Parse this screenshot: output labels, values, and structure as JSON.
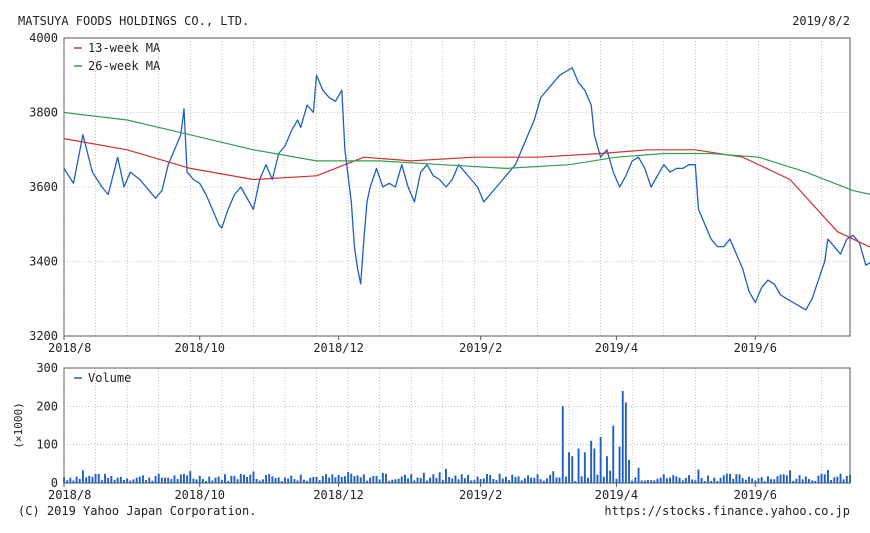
{
  "header": {
    "company": "MATSUYA FOODS HOLDINGS CO., LTD.",
    "date": "2019/8/2"
  },
  "footer": {
    "copyright": "(C) 2019 Yahoo Japan Corporation.",
    "url": "https://stocks.finance.yahoo.co.jp"
  },
  "colors": {
    "price": "#1f5fbf",
    "ma13": "#d03030",
    "ma26": "#30a050",
    "volume": "#1f5fbf",
    "grid": "#9a9a9a",
    "axis": "#555555"
  },
  "chart_data": [
    {
      "type": "line",
      "title": "",
      "x_tick_labels": [
        "2018/8",
        "2018/10",
        "2018/12",
        "2019/2",
        "2019/4",
        "2019/6"
      ],
      "x_tick_positions": [
        0,
        43,
        87,
        132,
        175,
        219
      ],
      "n_days": 250,
      "y_ticks": [
        3200,
        3400,
        3600,
        3800,
        4000
      ],
      "ylim": [
        3200,
        4000
      ],
      "grid": true,
      "legend": "top-left",
      "series": [
        {
          "name": "",
          "role": "price",
          "points": [
            [
              0,
              3650
            ],
            [
              3,
              3610
            ],
            [
              6,
              3740
            ],
            [
              9,
              3640
            ],
            [
              12,
              3600
            ],
            [
              14,
              3580
            ],
            [
              17,
              3680
            ],
            [
              19,
              3600
            ],
            [
              21,
              3640
            ],
            [
              24,
              3620
            ],
            [
              27,
              3590
            ],
            [
              29,
              3570
            ],
            [
              31,
              3590
            ],
            [
              33,
              3660
            ],
            [
              35,
              3700
            ],
            [
              37,
              3740
            ],
            [
              38,
              3810
            ],
            [
              39,
              3640
            ],
            [
              41,
              3620
            ],
            [
              43,
              3610
            ],
            [
              45,
              3580
            ],
            [
              47,
              3540
            ],
            [
              49,
              3500
            ],
            [
              50,
              3490
            ],
            [
              52,
              3540
            ],
            [
              54,
              3580
            ],
            [
              56,
              3600
            ],
            [
              58,
              3570
            ],
            [
              60,
              3540
            ],
            [
              62,
              3620
            ],
            [
              64,
              3660
            ],
            [
              66,
              3620
            ],
            [
              68,
              3690
            ],
            [
              70,
              3710
            ],
            [
              72,
              3750
            ],
            [
              74,
              3780
            ],
            [
              75,
              3760
            ],
            [
              77,
              3820
            ],
            [
              79,
              3800
            ],
            [
              80,
              3900
            ],
            [
              82,
              3860
            ],
            [
              84,
              3840
            ],
            [
              86,
              3830
            ],
            [
              88,
              3860
            ],
            [
              89,
              3700
            ],
            [
              91,
              3560
            ],
            [
              92,
              3440
            ],
            [
              93,
              3380
            ],
            [
              94,
              3340
            ],
            [
              95,
              3460
            ],
            [
              96,
              3560
            ],
            [
              97,
              3600
            ],
            [
              99,
              3650
            ],
            [
              101,
              3600
            ],
            [
              103,
              3610
            ],
            [
              105,
              3600
            ],
            [
              107,
              3660
            ],
            [
              109,
              3600
            ],
            [
              111,
              3560
            ],
            [
              113,
              3640
            ],
            [
              115,
              3660
            ],
            [
              117,
              3630
            ],
            [
              119,
              3620
            ],
            [
              121,
              3600
            ],
            [
              123,
              3620
            ],
            [
              125,
              3660
            ],
            [
              127,
              3640
            ],
            [
              129,
              3620
            ],
            [
              131,
              3600
            ],
            [
              133,
              3560
            ],
            [
              135,
              3580
            ],
            [
              137,
              3600
            ],
            [
              139,
              3620
            ],
            [
              141,
              3640
            ],
            [
              143,
              3660
            ],
            [
              145,
              3700
            ],
            [
              147,
              3740
            ],
            [
              149,
              3780
            ],
            [
              151,
              3840
            ],
            [
              153,
              3860
            ],
            [
              155,
              3880
            ],
            [
              157,
              3900
            ],
            [
              159,
              3910
            ],
            [
              161,
              3920
            ],
            [
              163,
              3880
            ],
            [
              165,
              3860
            ],
            [
              167,
              3820
            ],
            [
              168,
              3740
            ],
            [
              170,
              3680
            ],
            [
              172,
              3700
            ],
            [
              174,
              3640
            ],
            [
              176,
              3600
            ],
            [
              178,
              3630
            ],
            [
              180,
              3670
            ],
            [
              182,
              3680
            ],
            [
              184,
              3650
            ],
            [
              186,
              3600
            ],
            [
              188,
              3630
            ],
            [
              190,
              3660
            ],
            [
              192,
              3640
            ],
            [
              194,
              3650
            ],
            [
              196,
              3650
            ],
            [
              198,
              3660
            ],
            [
              200,
              3660
            ],
            [
              201,
              3540
            ],
            [
              203,
              3500
            ],
            [
              205,
              3460
            ],
            [
              207,
              3440
            ],
            [
              209,
              3440
            ],
            [
              211,
              3460
            ],
            [
              213,
              3420
            ],
            [
              215,
              3380
            ],
            [
              217,
              3320
            ],
            [
              219,
              3290
            ],
            [
              221,
              3330
            ],
            [
              223,
              3350
            ],
            [
              225,
              3340
            ],
            [
              227,
              3310
            ],
            [
              229,
              3300
            ],
            [
              231,
              3290
            ],
            [
              233,
              3280
            ],
            [
              235,
              3270
            ],
            [
              237,
              3300
            ],
            [
              239,
              3350
            ],
            [
              241,
              3400
            ],
            [
              242,
              3460
            ],
            [
              244,
              3440
            ],
            [
              246,
              3420
            ],
            [
              248,
              3460
            ],
            [
              250,
              3470
            ],
            [
              252,
              3450
            ],
            [
              254,
              3390
            ],
            [
              256,
              3400
            ],
            [
              258,
              3410
            ],
            [
              260,
              3420
            ],
            [
              262,
              3410
            ],
            [
              264,
              3400
            ],
            [
              265,
              3580
            ],
            [
              266,
              3600
            ],
            [
              267,
              3520
            ]
          ]
        },
        {
          "name": "13-week MA",
          "role": "ma13",
          "points": [
            [
              0,
              3730
            ],
            [
              20,
              3700
            ],
            [
              40,
              3650
            ],
            [
              60,
              3620
            ],
            [
              80,
              3630
            ],
            [
              95,
              3680
            ],
            [
              110,
              3670
            ],
            [
              130,
              3680
            ],
            [
              150,
              3680
            ],
            [
              170,
              3690
            ],
            [
              185,
              3700
            ],
            [
              200,
              3700
            ],
            [
              215,
              3680
            ],
            [
              230,
              3620
            ],
            [
              245,
              3480
            ],
            [
              255,
              3440
            ],
            [
              267,
              3420
            ]
          ]
        },
        {
          "name": "26-week MA",
          "role": "ma26",
          "points": [
            [
              0,
              3800
            ],
            [
              20,
              3780
            ],
            [
              40,
              3740
            ],
            [
              60,
              3700
            ],
            [
              80,
              3670
            ],
            [
              100,
              3670
            ],
            [
              120,
              3660
            ],
            [
              140,
              3650
            ],
            [
              160,
              3660
            ],
            [
              175,
              3680
            ],
            [
              190,
              3690
            ],
            [
              205,
              3690
            ],
            [
              220,
              3680
            ],
            [
              235,
              3640
            ],
            [
              250,
              3590
            ],
            [
              267,
              3560
            ]
          ]
        }
      ]
    },
    {
      "type": "bar",
      "title": "",
      "ylabel": "(×1000)",
      "y_ticks": [
        0,
        100,
        200,
        300
      ],
      "ylim": [
        0,
        300
      ],
      "legend": "top-left",
      "series": [
        {
          "name": "Volume",
          "spikes": [
            [
              158,
              200
            ],
            [
              160,
              80
            ],
            [
              161,
              70
            ],
            [
              163,
              90
            ],
            [
              165,
              80
            ],
            [
              167,
              110
            ],
            [
              168,
              90
            ],
            [
              170,
              120
            ],
            [
              172,
              70
            ],
            [
              174,
              150
            ],
            [
              176,
              95
            ],
            [
              177,
              240
            ],
            [
              178,
              210
            ],
            [
              179,
              60
            ],
            [
              182,
              40
            ]
          ],
          "base_min": 5,
          "base_max": 25
        }
      ]
    }
  ]
}
